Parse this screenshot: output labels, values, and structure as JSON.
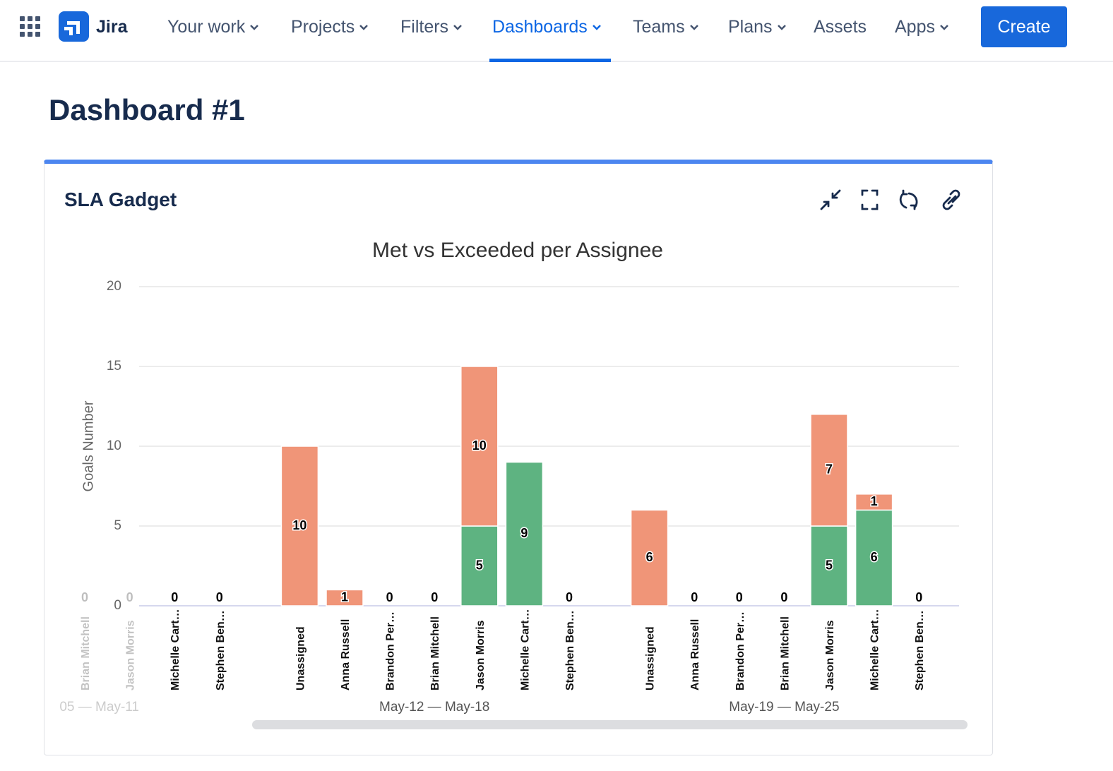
{
  "nav": {
    "product": "Jira",
    "items": [
      "Your work",
      "Projects",
      "Filters",
      "Dashboards",
      "Teams",
      "Plans",
      "Assets",
      "Apps"
    ],
    "create": "Create"
  },
  "page": {
    "title": "Dashboard #1"
  },
  "gadget": {
    "title": "SLA Gadget"
  },
  "chart_data": {
    "type": "bar",
    "stacked": true,
    "title": "Met vs Exceeded per Assignee",
    "y_label": "Goals Number",
    "ylim": [
      0,
      20
    ],
    "yticks": [
      0,
      5,
      10,
      15,
      20
    ],
    "grid": true,
    "series_colors": [
      "#5eb381",
      "#f09578"
    ],
    "groups": [
      {
        "label": "05 — May-11",
        "categories": [
          "Brian Mitchell",
          "Jason Morris",
          "Michelle Cart…",
          "Stephen Ben…"
        ],
        "series": [
          {
            "values": [
              0,
              0,
              0,
              0
            ]
          },
          {
            "values": [
              0,
              0,
              0,
              0
            ]
          }
        ]
      },
      {
        "label": "May-12 — May-18",
        "categories": [
          "Unassigned",
          "Anna Russell",
          "Brandon Per…",
          "Brian Mitchell",
          "Jason Morris",
          "Michelle Cart…",
          "Stephen Ben…"
        ],
        "series": [
          {
            "values": [
              0,
              0,
              0,
              0,
              5,
              9,
              0
            ]
          },
          {
            "values": [
              10,
              1,
              0,
              0,
              10,
              0,
              0
            ]
          }
        ]
      },
      {
        "label": "May-19 — May-25",
        "categories": [
          "Unassigned",
          "Anna Russell",
          "Brandon Per…",
          "Brian Mitchell",
          "Jason Morris",
          "Michelle Cart…",
          "Stephen Ben…"
        ],
        "series": [
          {
            "values": [
              0,
              0,
              0,
              0,
              5,
              6,
              0
            ]
          },
          {
            "values": [
              6,
              0,
              0,
              0,
              7,
              1,
              0
            ]
          }
        ]
      }
    ]
  }
}
